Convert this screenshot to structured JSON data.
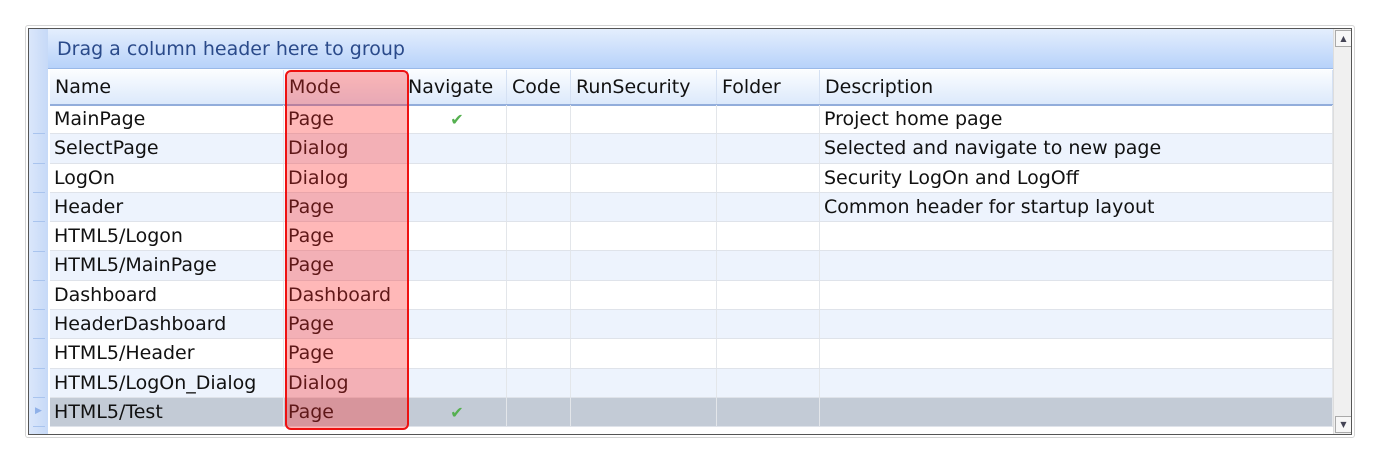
{
  "group_panel": {
    "text": "Drag a column header here to group"
  },
  "columns": [
    "Name",
    "Mode",
    "Navigate",
    "Code",
    "RunSecurity",
    "Folder",
    "Description"
  ],
  "rows": [
    {
      "name": "MainPage",
      "mode": "Page",
      "navigate": true,
      "description": "Project home page"
    },
    {
      "name": "SelectPage",
      "mode": "Dialog",
      "navigate": false,
      "description": "Selected and navigate to new page"
    },
    {
      "name": "LogOn",
      "mode": "Dialog",
      "navigate": false,
      "description": "Security LogOn and LogOff"
    },
    {
      "name": "Header",
      "mode": "Page",
      "navigate": false,
      "description": "Common header for startup layout"
    },
    {
      "name": "HTML5/Logon",
      "mode": "Page",
      "navigate": false,
      "description": ""
    },
    {
      "name": "HTML5/MainPage",
      "mode": "Page",
      "navigate": false,
      "description": ""
    },
    {
      "name": "Dashboard",
      "mode": "Dashboard",
      "navigate": false,
      "description": ""
    },
    {
      "name": "HeaderDashboard",
      "mode": "Page",
      "navigate": false,
      "description": ""
    },
    {
      "name": "HTML5/Header",
      "mode": "Page",
      "navigate": false,
      "description": ""
    },
    {
      "name": "HTML5/LogOn_Dialog",
      "mode": "Dialog",
      "navigate": false,
      "description": ""
    },
    {
      "name": "HTML5/Test",
      "mode": "Page",
      "navigate": true,
      "description": "",
      "selected": true
    }
  ],
  "highlight": {
    "column": "Mode",
    "color": "#ee1111"
  },
  "icons": {
    "check": "checkmark-icon",
    "scroll_up": "arrow-up-icon",
    "scroll_down": "arrow-down-icon",
    "row_indicator": "triangle-right-icon"
  }
}
